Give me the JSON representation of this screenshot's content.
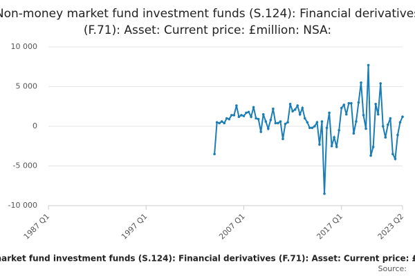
{
  "chart_data": {
    "type": "line",
    "title": "Non-money market fund investment funds (S.124): Financial derivatives (F.71): Asset: Current price: £million: NSA:",
    "source_label": "Source:",
    "x": [
      "2004 Q1",
      "2004 Q2",
      "2004 Q3",
      "2004 Q4",
      "2005 Q1",
      "2005 Q2",
      "2005 Q3",
      "2005 Q4",
      "2006 Q1",
      "2006 Q2",
      "2006 Q3",
      "2006 Q4",
      "2007 Q1",
      "2007 Q2",
      "2007 Q3",
      "2007 Q4",
      "2008 Q1",
      "2008 Q2",
      "2008 Q3",
      "2008 Q4",
      "2009 Q1",
      "2009 Q2",
      "2009 Q3",
      "2009 Q4",
      "2010 Q1",
      "2010 Q2",
      "2010 Q3",
      "2010 Q4",
      "2011 Q1",
      "2011 Q2",
      "2011 Q3",
      "2011 Q4",
      "2012 Q1",
      "2012 Q2",
      "2012 Q3",
      "2012 Q4",
      "2013 Q1",
      "2013 Q2",
      "2013 Q3",
      "2013 Q4",
      "2014 Q1",
      "2014 Q2",
      "2014 Q3",
      "2014 Q4",
      "2015 Q1",
      "2015 Q2",
      "2015 Q3",
      "2015 Q4",
      "2016 Q1",
      "2016 Q2",
      "2016 Q3",
      "2016 Q4",
      "2017 Q1",
      "2017 Q2",
      "2017 Q3",
      "2017 Q4",
      "2018 Q1",
      "2018 Q2",
      "2018 Q3",
      "2018 Q4",
      "2019 Q1",
      "2019 Q2",
      "2019 Q3",
      "2019 Q4",
      "2020 Q1",
      "2020 Q2",
      "2020 Q3",
      "2020 Q4",
      "2021 Q1",
      "2021 Q2",
      "2021 Q3",
      "2021 Q4",
      "2022 Q1",
      "2022 Q2",
      "2022 Q3",
      "2022 Q4",
      "2023 Q1",
      "2023 Q2"
    ],
    "series": [
      {
        "color": "#1a7db6",
        "values": [
          -3500,
          500,
          400,
          600,
          400,
          1000,
          900,
          1400,
          1400,
          2600,
          1200,
          1400,
          1300,
          1700,
          1800,
          1200,
          2400,
          1000,
          900,
          -700,
          1500,
          600,
          -300,
          800,
          2200,
          400,
          400,
          600,
          -1600,
          300,
          500,
          2800,
          1900,
          2100,
          2600,
          1500,
          2300,
          1000,
          500,
          -200,
          -200,
          0,
          500,
          -2300,
          600,
          -8500,
          -200,
          1700,
          -2500,
          -1400,
          -2600,
          -500,
          2300,
          2700,
          1500,
          2900,
          2900,
          -900,
          600,
          3000,
          5500,
          1400,
          -300,
          7700,
          -3700,
          -2600,
          2800,
          1500,
          5400,
          0,
          -1400,
          200,
          1000,
          -3500,
          -4100,
          -1100,
          500,
          1200
        ]
      }
    ],
    "xlim": [
      "1987 Q1",
      "2023 Q2"
    ],
    "xticks": [
      "1987 Q1",
      "1997 Q1",
      "2007 Q1",
      "2017 Q1",
      "2023 Q2"
    ],
    "ylim": [
      -10000,
      10000
    ],
    "yticks": [
      {
        "value": -10000,
        "label": "-10 000"
      },
      {
        "value": -5000,
        "label": "-5 000"
      },
      0,
      {
        "value": 5000,
        "label": "5 000"
      },
      {
        "value": 10000,
        "label": "10 000"
      }
    ],
    "grid": true
  }
}
